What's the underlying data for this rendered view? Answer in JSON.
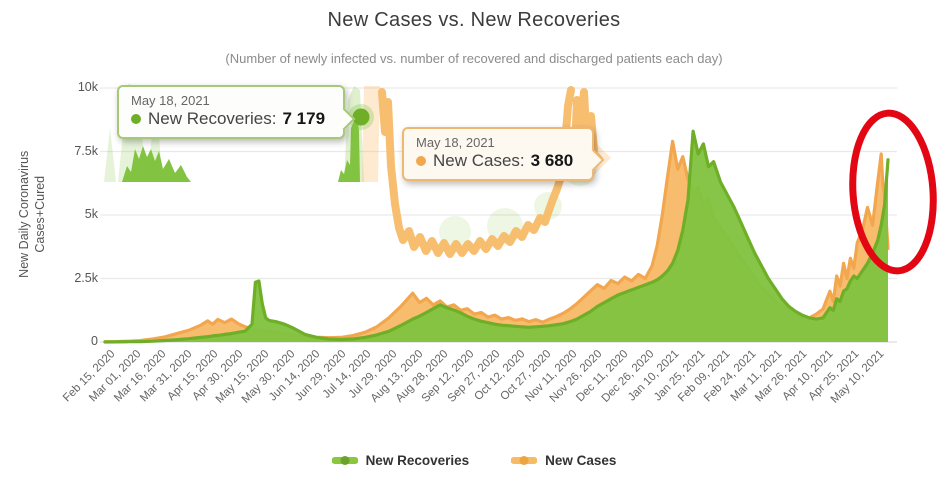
{
  "title": "New Cases vs. New Recoveries",
  "subtitle": "(Number of newly infected vs. number of recovered and discharged patients each day)",
  "y_axis": {
    "label_line1": "New Daily Coronavirus",
    "label_line2": "Cases+Cured"
  },
  "tooltips": {
    "recoveries": {
      "date": "May 18, 2021",
      "label": "New Recoveries:",
      "value": "7 179"
    },
    "cases": {
      "date": "May 18, 2021",
      "label": "New Cases:",
      "value": "3 680"
    }
  },
  "legend": [
    {
      "label": "New Recoveries",
      "color": "#8bc63f",
      "dot": "#6ba32a"
    },
    {
      "label": "New Cases",
      "color": "#f6bb66",
      "dot": "#eda53f"
    }
  ],
  "colors": {
    "grid": "#e9e9e9",
    "axis": "#dddddd",
    "recoveries_line": "#6fae27",
    "recoveries_fill": "#82c341",
    "cases_line": "#f2a74e",
    "cases_fill": "#f7ba68",
    "annotation": "#e30613"
  },
  "annotation": {
    "shape": "ellipse",
    "color": "#e30613"
  },
  "chart_data": {
    "type": "area",
    "title": "New Cases vs. New Recoveries",
    "xlabel": "",
    "ylabel": "New Daily Coronavirus Cases+Cured",
    "x_unit": "days since Feb 15, 2020",
    "ylim": [
      0,
      10000
    ],
    "yticks": [
      {
        "value": 0,
        "label": "0"
      },
      {
        "value": 2500,
        "label": "2.5k"
      },
      {
        "value": 5000,
        "label": "5k"
      },
      {
        "value": 7500,
        "label": "7.5k"
      },
      {
        "value": 10000,
        "label": "10k"
      }
    ],
    "xticks": [
      {
        "day": 0,
        "label": "Feb 15, 2020"
      },
      {
        "day": 15,
        "label": "Mar 01, 2020"
      },
      {
        "day": 30,
        "label": "Mar 16, 2020"
      },
      {
        "day": 45,
        "label": "Mar 31, 2020"
      },
      {
        "day": 60,
        "label": "Apr 15, 2020"
      },
      {
        "day": 75,
        "label": "Apr 30, 2020"
      },
      {
        "day": 90,
        "label": "May 15, 2020"
      },
      {
        "day": 105,
        "label": "May 30, 2020"
      },
      {
        "day": 120,
        "label": "Jun 14, 2020"
      },
      {
        "day": 135,
        "label": "Jun 29, 2020"
      },
      {
        "day": 150,
        "label": "Jul 14, 2020"
      },
      {
        "day": 165,
        "label": "Jul 29, 2020"
      },
      {
        "day": 180,
        "label": "Aug 13, 2020"
      },
      {
        "day": 195,
        "label": "Aug 28, 2020"
      },
      {
        "day": 210,
        "label": "Sep 12, 2020"
      },
      {
        "day": 225,
        "label": "Sep 27, 2020"
      },
      {
        "day": 240,
        "label": "Oct 12, 2020"
      },
      {
        "day": 255,
        "label": "Oct 27, 2020"
      },
      {
        "day": 270,
        "label": "Nov 11, 2020"
      },
      {
        "day": 285,
        "label": "Nov 26, 2020"
      },
      {
        "day": 300,
        "label": "Dec 11, 2020"
      },
      {
        "day": 315,
        "label": "Dec 26, 2020"
      },
      {
        "day": 330,
        "label": "Jan 10, 2021"
      },
      {
        "day": 345,
        "label": "Jan 25, 2021"
      },
      {
        "day": 360,
        "label": "Feb 09, 2021"
      },
      {
        "day": 375,
        "label": "Feb 24, 2021"
      },
      {
        "day": 390,
        "label": "Mar 11, 2021"
      },
      {
        "day": 405,
        "label": "Mar 26, 2021"
      },
      {
        "day": 420,
        "label": "Apr 10, 2021"
      },
      {
        "day": 435,
        "label": "Apr 25, 2021"
      },
      {
        "day": 450,
        "label": "May 10, 2021"
      }
    ],
    "x_days": [
      0,
      7,
      14,
      21,
      28,
      35,
      42,
      49,
      56,
      60,
      63,
      66,
      70,
      74,
      78,
      82,
      86,
      88,
      90,
      92,
      94,
      96,
      100,
      105,
      110,
      117,
      124,
      131,
      138,
      145,
      152,
      159,
      166,
      173,
      180,
      184,
      188,
      192,
      196,
      200,
      204,
      208,
      212,
      216,
      220,
      224,
      228,
      232,
      236,
      240,
      244,
      248,
      252,
      256,
      260,
      264,
      268,
      272,
      276,
      280,
      284,
      288,
      292,
      296,
      300,
      304,
      308,
      312,
      316,
      320,
      323,
      326,
      329,
      332,
      335,
      338,
      341,
      344,
      347,
      350,
      353,
      356,
      360,
      364,
      368,
      372,
      376,
      380,
      384,
      388,
      392,
      396,
      400,
      404,
      408,
      412,
      416,
      420,
      424,
      426,
      428,
      430,
      432,
      434,
      436,
      438,
      440,
      443,
      446,
      449,
      452,
      454,
      455,
      456,
      457,
      458
    ],
    "series": [
      {
        "name": "New Recoveries",
        "line": "#6fae27",
        "fill": "#82c341",
        "last_point": {
          "date": "May 18, 2021",
          "value": 7179
        },
        "values": [
          0,
          5,
          10,
          15,
          30,
          60,
          90,
          130,
          180,
          210,
          240,
          260,
          300,
          330,
          380,
          430,
          700,
          2350,
          2400,
          1500,
          950,
          850,
          800,
          700,
          550,
          300,
          180,
          120,
          100,
          120,
          180,
          280,
          420,
          650,
          900,
          1020,
          1160,
          1310,
          1460,
          1350,
          1260,
          1150,
          1010,
          900,
          820,
          760,
          700,
          660,
          640,
          620,
          600,
          580,
          600,
          620,
          640,
          680,
          720,
          800,
          900,
          1050,
          1200,
          1400,
          1550,
          1700,
          1850,
          1950,
          2050,
          2150,
          2250,
          2350,
          2450,
          2600,
          2800,
          3100,
          3600,
          4400,
          5600,
          8300,
          7400,
          7800,
          6900,
          7100,
          6300,
          5800,
          5300,
          4700,
          4100,
          3500,
          3000,
          2500,
          2100,
          1700,
          1400,
          1200,
          1050,
          950,
          900,
          950,
          1350,
          1250,
          1700,
          1600,
          2000,
          2100,
          2400,
          2600,
          2500,
          2800,
          3100,
          3500,
          4000,
          4600,
          5000,
          5400,
          6300,
          7179
        ]
      },
      {
        "name": "New Cases",
        "line": "#f2a74e",
        "fill": "#f7ba68",
        "last_point": {
          "date": "May 18, 2021",
          "value": 3680
        },
        "values": [
          10,
          15,
          30,
          60,
          120,
          200,
          330,
          460,
          660,
          830,
          700,
          890,
          760,
          900,
          720,
          600,
          520,
          480,
          470,
          450,
          430,
          420,
          380,
          330,
          280,
          230,
          190,
          170,
          180,
          250,
          380,
          600,
          950,
          1400,
          1920,
          1550,
          1720,
          1460,
          1620,
          1380,
          1460,
          1250,
          1310,
          1100,
          1160,
          980,
          1060,
          900,
          960,
          850,
          910,
          800,
          880,
          780,
          900,
          1000,
          1130,
          1300,
          1510,
          1760,
          2010,
          2260,
          2110,
          2420,
          2300,
          2560,
          2400,
          2660,
          2500,
          3000,
          3800,
          5000,
          6500,
          7900,
          6800,
          7300,
          6400,
          5900,
          6100,
          5400,
          5600,
          4900,
          4500,
          4100,
          3700,
          3300,
          2900,
          2500,
          2150,
          1850,
          1600,
          1400,
          1250,
          1100,
          1000,
          950,
          1100,
          1300,
          2000,
          1600,
          2600,
          2200,
          3100,
          2500,
          3300,
          2900,
          3900,
          4400,
          5300,
          4600,
          6300,
          7400,
          6200,
          5800,
          4700,
          3680
        ]
      }
    ],
    "legend_position": "bottom",
    "grid": true
  }
}
